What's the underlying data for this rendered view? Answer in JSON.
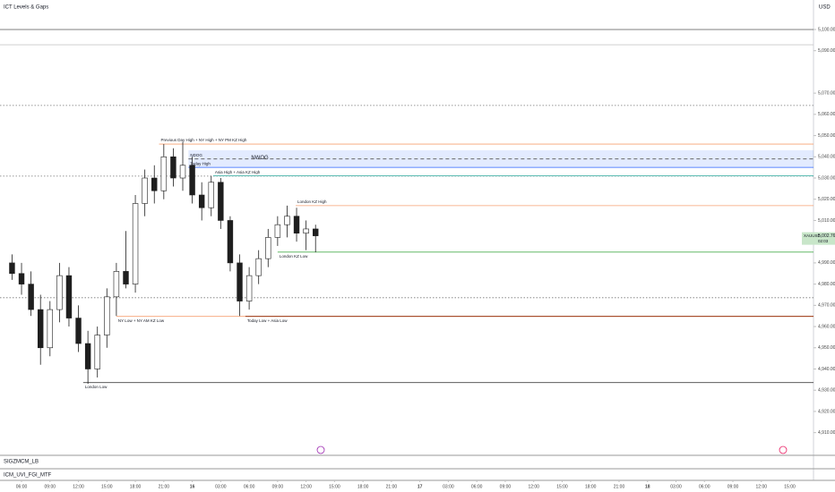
{
  "chart_data": {
    "type": "candlestick",
    "title": "ICT Levels & Gaps",
    "currency": "USD",
    "up_color": "#ffffff",
    "down_color": "#1e1e1e",
    "x": [
      5,
      6,
      7,
      8,
      9,
      10,
      11,
      12,
      13,
      14,
      15,
      16,
      17,
      18,
      19,
      20,
      21,
      22,
      23,
      24,
      25,
      26,
      27,
      28,
      29,
      30,
      31,
      32,
      33,
      34,
      35,
      36,
      37
    ],
    "open": [
      4990,
      4985,
      4980,
      4968,
      4950,
      4968,
      4984,
      4964,
      4952,
      4940,
      4956,
      4974,
      4986,
      4980,
      5018,
      5030,
      5024,
      5040,
      5030,
      5036,
      5022,
      5016,
      5028,
      5010,
      4990,
      4972,
      4984,
      4992,
      5002,
      5008,
      5012,
      5004,
      5006
    ],
    "high": [
      4994,
      4990,
      4986,
      4975,
      4972,
      4990,
      4988,
      4970,
      4958,
      4960,
      4978,
      4990,
      5005,
      5022,
      5034,
      5036,
      5046,
      5044,
      5047,
      5040,
      5028,
      5031,
      5030,
      5012,
      4994,
      4988,
      4996,
      5006,
      5012,
      5017,
      5016,
      5010,
      5008
    ],
    "low": [
      4982,
      4975,
      4965,
      4942,
      4946,
      4962,
      4960,
      4948,
      4933,
      4936,
      4950,
      4965,
      4978,
      4976,
      5012,
      5018,
      5020,
      5026,
      5024,
      5018,
      5010,
      5012,
      5006,
      4986,
      4965,
      4968,
      4980,
      4988,
      4998,
      5002,
      5000,
      4996,
      4995
    ],
    "close": [
      4985,
      4980,
      4968,
      4950,
      4968,
      4984,
      4964,
      4952,
      4940,
      4956,
      4974,
      4986,
      4980,
      5018,
      5030,
      5024,
      5040,
      5030,
      5036,
      5022,
      5016,
      5028,
      5010,
      4990,
      4972,
      4984,
      4992,
      5002,
      5008,
      5012,
      5004,
      5006,
      5002.76
    ],
    "xlim": [
      3.73,
      89.5
    ],
    "ylim": [
      4901.0,
      5113.9
    ],
    "xticks": [
      {
        "value": 6,
        "label": "06:00"
      },
      {
        "value": 9,
        "label": "09:00"
      },
      {
        "value": 12,
        "label": "12:00"
      },
      {
        "value": 15,
        "label": "15:00"
      },
      {
        "value": 18,
        "label": "18:00"
      },
      {
        "value": 21,
        "label": "21:00"
      },
      {
        "value": 24,
        "label": "16"
      },
      {
        "value": 27,
        "label": "03:00"
      },
      {
        "value": 30,
        "label": "06:00"
      },
      {
        "value": 33,
        "label": "09:00"
      },
      {
        "value": 36,
        "label": "12:00"
      },
      {
        "value": 39,
        "label": "15:00"
      },
      {
        "value": 42,
        "label": "18:00"
      },
      {
        "value": 45,
        "label": "21:00"
      },
      {
        "value": 48,
        "label": "17"
      },
      {
        "value": 51,
        "label": "03:00"
      },
      {
        "value": 54,
        "label": "06:00"
      },
      {
        "value": 57,
        "label": "09:00"
      },
      {
        "value": 60,
        "label": "12:00"
      },
      {
        "value": 63,
        "label": "15:00"
      },
      {
        "value": 66,
        "label": "18:00"
      },
      {
        "value": 69,
        "label": "21:00"
      },
      {
        "value": 72,
        "label": "18"
      },
      {
        "value": 75,
        "label": "03:00"
      },
      {
        "value": 78,
        "label": "06:00"
      },
      {
        "value": 81,
        "label": "09:00"
      },
      {
        "value": 84,
        "label": "12:00"
      },
      {
        "value": 87,
        "label": "15:00"
      }
    ],
    "yticks": [
      {
        "value": 5100,
        "label": "5,100.00"
      },
      {
        "value": 5090,
        "label": "5,090.00"
      },
      {
        "value": 5070,
        "label": "5,070.00"
      },
      {
        "value": 5060,
        "label": "5,060.00"
      },
      {
        "value": 5050,
        "label": "5,050.00"
      },
      {
        "value": 5040,
        "label": "5,040.00"
      },
      {
        "value": 5030,
        "label": "5,030.00"
      },
      {
        "value": 5020,
        "label": "5,020.00"
      },
      {
        "value": 5010,
        "label": "5,010.00"
      },
      {
        "value": 4990,
        "label": "4,990.00"
      },
      {
        "value": 4980,
        "label": "4,980.00"
      },
      {
        "value": 4970,
        "label": "4,970.00"
      },
      {
        "value": 4960,
        "label": "4,960.00"
      },
      {
        "value": 4950,
        "label": "4,950.00"
      },
      {
        "value": 4940,
        "label": "4,940.00"
      },
      {
        "value": 4930,
        "label": "4,930.00"
      },
      {
        "value": 4920,
        "label": "4,920.00"
      },
      {
        "value": 4910,
        "label": "4,910.00"
      }
    ],
    "zone": {
      "label": "NWOG",
      "top": 5043.1,
      "bottom": 5035.0,
      "start": 23.6,
      "color": "#2962ff"
    },
    "levels": [
      {
        "price": 5100,
        "start": 3.73,
        "color": "#555555",
        "style": "solid"
      },
      {
        "price": 5092.8,
        "start": 3.73,
        "color": "#c8c8c8",
        "style": "solid"
      },
      {
        "price": 5064.2,
        "start": 3.73,
        "color": "#777777",
        "style": "dotted"
      },
      {
        "price": 5046,
        "start": 20.5,
        "color": "#f7a072",
        "style": "solid",
        "label": "Previous Day High + NY High + NY PM KZ High"
      },
      {
        "price": 5039,
        "start": 23.6,
        "color": "#555555",
        "style": "dashed",
        "label": "NDOG"
      },
      {
        "price": 5035,
        "start": 23.6,
        "color": "#2962ff",
        "style": "solid",
        "label": "Today High"
      },
      {
        "price": 5030.9,
        "start": 3.73,
        "color": "#777777",
        "style": "dotted"
      },
      {
        "price": 5031,
        "start": 26.2,
        "color": "#26a69a",
        "style": "solid",
        "label": "Asia High + Asia KZ High"
      },
      {
        "price": 5017,
        "start": 34.9,
        "color": "#f7a072",
        "style": "solid",
        "label": "London KZ High"
      },
      {
        "price": 4995.1,
        "start": 33,
        "color": "#4caf50",
        "style": "solid",
        "label": "London KZ Low"
      },
      {
        "price": 4973.6,
        "start": 3.73,
        "color": "#777777",
        "style": "dotted"
      },
      {
        "price": 4964.8,
        "start": 16,
        "color": "#f7a072",
        "style": "solid",
        "label": "NY Low + NY AM KZ Low"
      },
      {
        "price": 4964.8,
        "start": 29.6,
        "color": "#8b2500",
        "style": "solid",
        "label": "Today Low + Asia Low"
      },
      {
        "price": 4933.6,
        "start": 12.5,
        "color": "#444444",
        "style": "solid",
        "label": "London Low"
      }
    ],
    "symbol": "XAUUSD",
    "last": {
      "value": 5002.76,
      "label": "5,002.76"
    },
    "countdown": "02:03",
    "indicators": [
      "SIGZMCM_LB",
      "ICM_UVI_FGI_MTF"
    ]
  }
}
